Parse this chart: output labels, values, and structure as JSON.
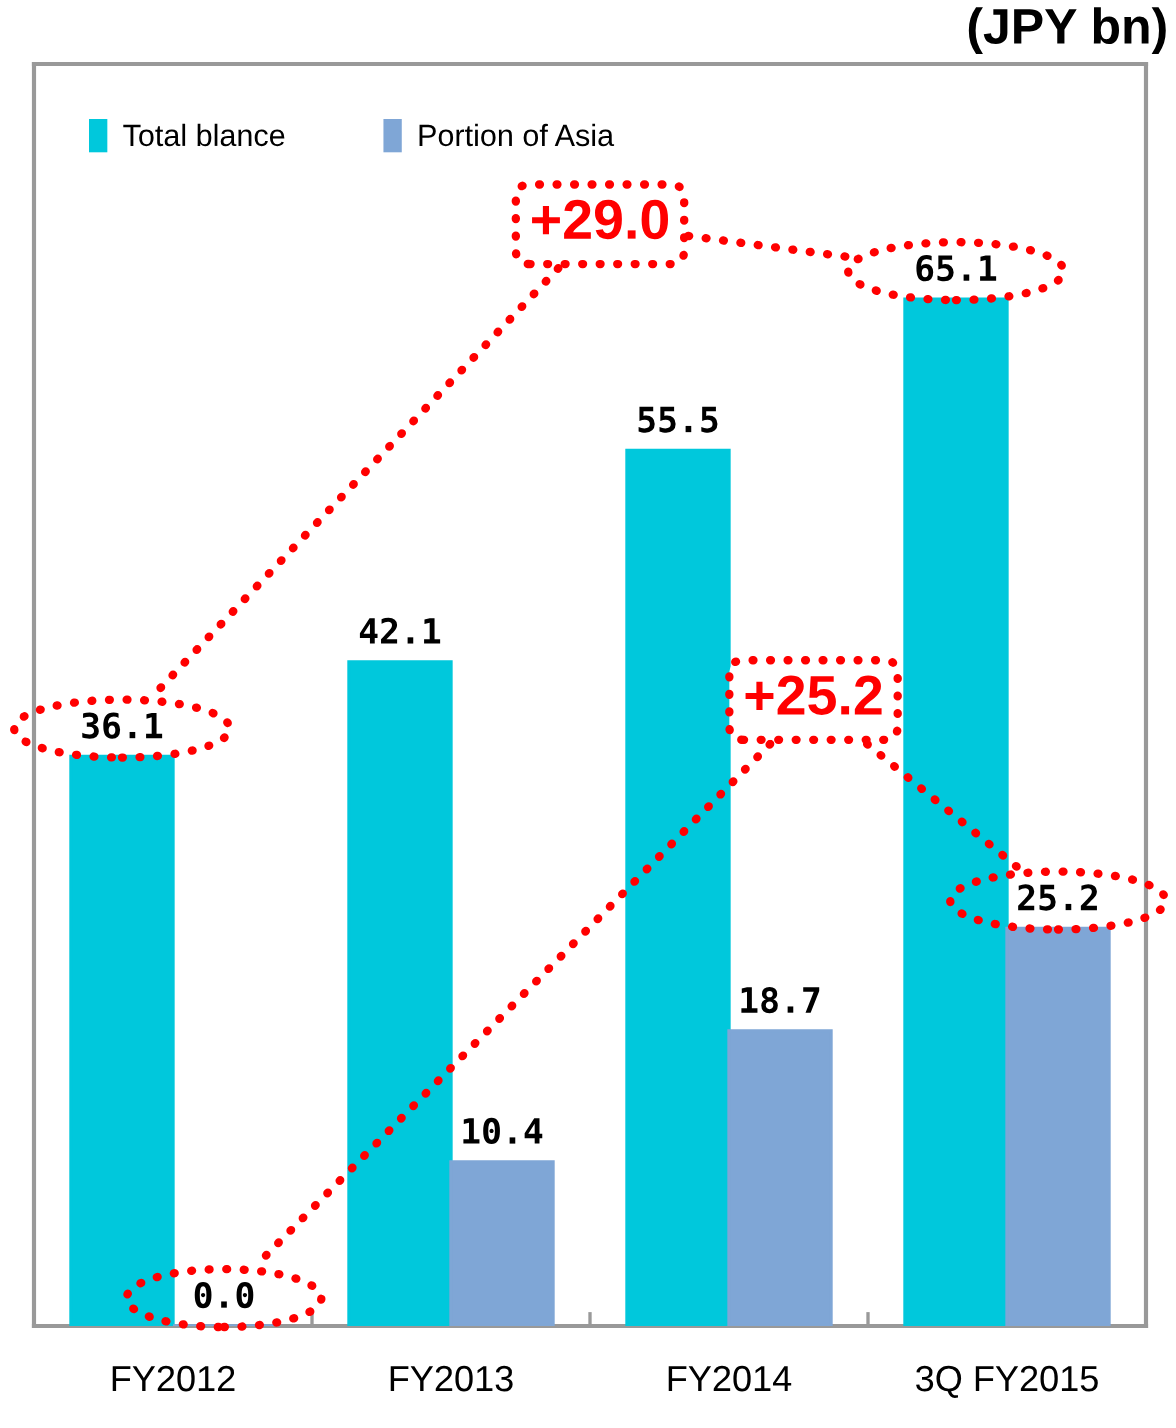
{
  "chart_data": {
    "type": "bar",
    "ylabel": "(JPY bn)",
    "categories": [
      "FY2012",
      "FY2013",
      "FY2014",
      "3Q FY2015"
    ],
    "series": [
      {
        "name": "Total blance",
        "color": "#00c8dc",
        "values": [
          36.1,
          42.1,
          55.5,
          65.1
        ],
        "value_labels": [
          "36.1",
          "42.1",
          "55.5",
          "65.1"
        ]
      },
      {
        "name": "Portion of Asia",
        "color": "#7fa6d6",
        "values": [
          0.0,
          10.4,
          18.7,
          25.2
        ],
        "value_labels": [
          "0.0",
          "10.4",
          "18.7",
          "25.2"
        ]
      }
    ],
    "ylim": [
      0,
      80
    ],
    "legend": "top left",
    "tick_labels": "x",
    "annotations": [
      "+29.0",
      "+25.2"
    ]
  }
}
